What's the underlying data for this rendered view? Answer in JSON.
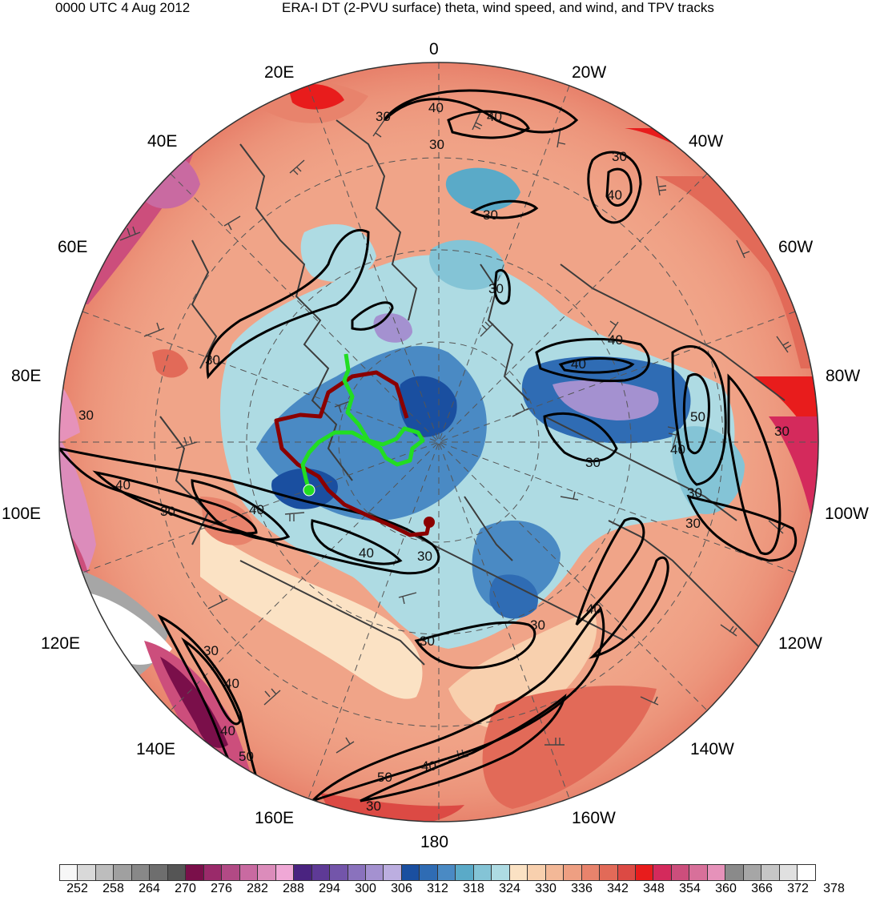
{
  "header": {
    "left": "0000 UTC 4 Aug 2012",
    "right": "ERA-I DT (2-PVU surface) theta, wind speed, and wind, and TPV tracks"
  },
  "map": {
    "projection": "north-polar-stereographic",
    "longitude_labels": [
      "0",
      "20W",
      "40W",
      "60W",
      "80W",
      "100W",
      "120W",
      "140W",
      "160W",
      "180",
      "160E",
      "140E",
      "120E",
      "100E",
      "80E",
      "60E",
      "40E",
      "20E"
    ],
    "fill_variable": "theta",
    "contour_variable": "wind speed",
    "contour_labels": [
      "30",
      "40",
      "50"
    ],
    "tpv_tracks": [
      {
        "color": "#8b0000",
        "start_marker": "end-dot"
      },
      {
        "color": "#22dd22",
        "start_marker": "end-dot"
      }
    ]
  },
  "colorbar": {
    "ticks": [
      "252",
      "258",
      "264",
      "270",
      "276",
      "282",
      "288",
      "294",
      "300",
      "306",
      "312",
      "318",
      "324",
      "330",
      "336",
      "342",
      "348",
      "354",
      "360",
      "366",
      "372",
      "378"
    ],
    "colors": [
      "#f7f7f7",
      "#d9d9d9",
      "#bdbdbd",
      "#a0a0a0",
      "#888888",
      "#6e6e6e",
      "#555555",
      "#7a0f4a",
      "#9a2a6a",
      "#b24a85",
      "#c96aa1",
      "#dc8cbb",
      "#f0a8d6",
      "#4a2380",
      "#5e3a96",
      "#7355aa",
      "#8a72bd",
      "#a491d0",
      "#bcaee0",
      "#1a4fa0",
      "#2f6cb4",
      "#4a8ac4",
      "#5aaac8",
      "#84c4d6",
      "#aedbe3",
      "#fbe2c4",
      "#f8d0ae",
      "#f3b897",
      "#ee9f82",
      "#e8836c",
      "#e26a58",
      "#dc4a44",
      "#e81c1c",
      "#d42a5c",
      "#cc4e7c",
      "#d8709a",
      "#e692ba",
      "#8a8a8a",
      "#a6a6a6",
      "#c6c6c6",
      "#e0e0e0",
      "#ffffff"
    ]
  }
}
